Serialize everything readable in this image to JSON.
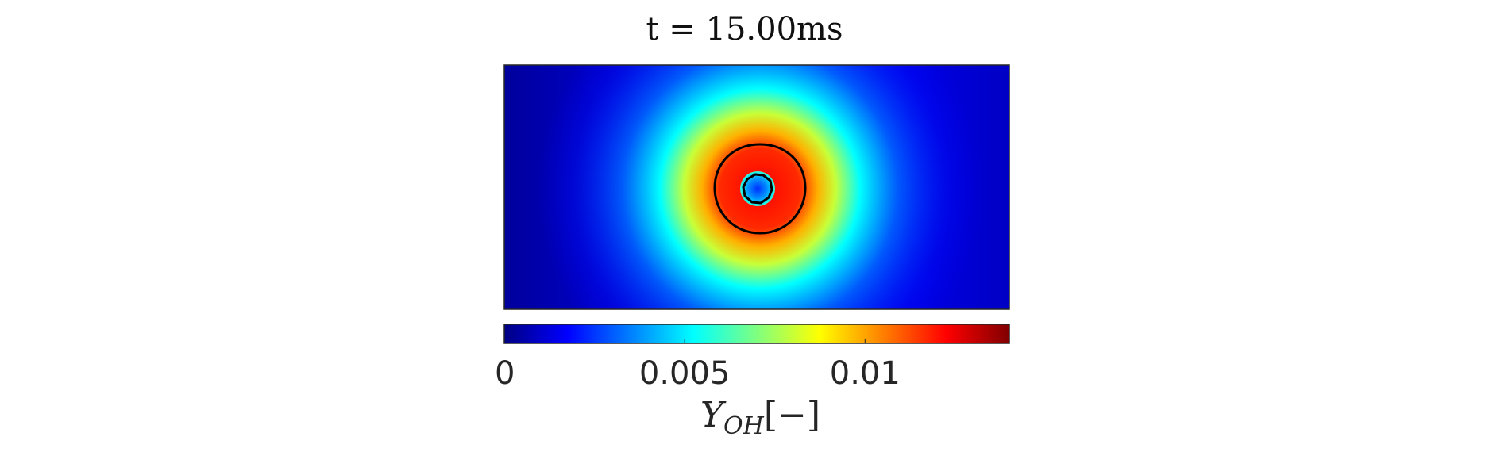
{
  "chart_data": {
    "type": "heatmap",
    "title": "t = 15.00ms",
    "colormap": "jet",
    "field_peak": "flame ring around a small cool kernel",
    "colorbar": {
      "label_main": "Y",
      "label_sub": "OH",
      "label_unit": "[−]",
      "range": [
        0,
        0.014
      ],
      "ticks": [
        0,
        0.005,
        0.01
      ],
      "tick_labels": [
        "0",
        "0.005",
        "0.01"
      ]
    },
    "contours": [
      "outer-iso-line",
      "inner-iso-line"
    ],
    "colors": {
      "stops": [
        "#000083",
        "#0000ff",
        "#00ffff",
        "#ffff00",
        "#ff0000",
        "#800000"
      ],
      "contour": "#000000",
      "frame": "#262626"
    }
  }
}
